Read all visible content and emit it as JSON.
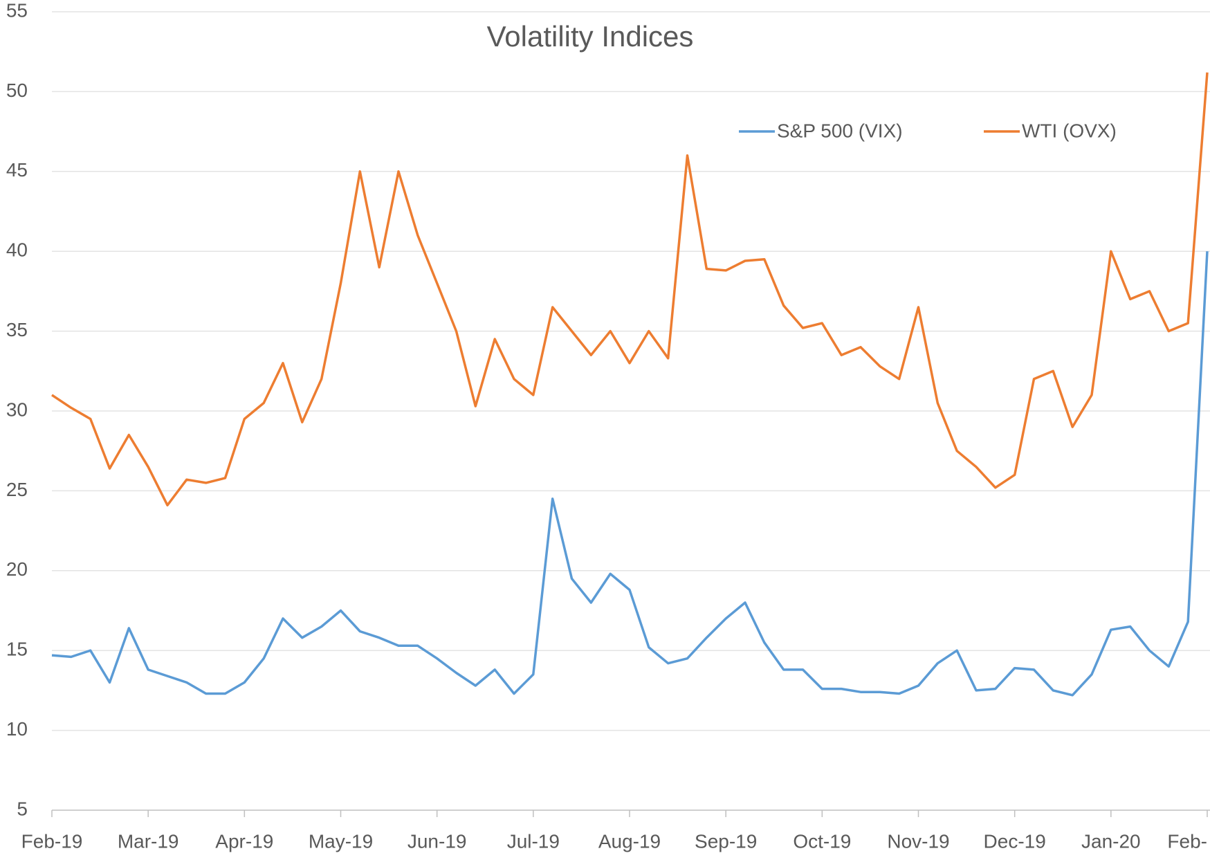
{
  "chart_data": {
    "type": "line",
    "title": "Volatility Indices",
    "categories": [
      "Feb-19",
      null,
      null,
      null,
      null,
      "Mar-19",
      null,
      null,
      null,
      null,
      "Apr-19",
      null,
      null,
      null,
      null,
      "May-19",
      null,
      null,
      null,
      null,
      "Jun-19",
      null,
      null,
      null,
      null,
      "Jul-19",
      null,
      null,
      null,
      null,
      "Aug-19",
      null,
      null,
      null,
      null,
      "Sep-19",
      null,
      null,
      null,
      null,
      "Oct-19",
      null,
      null,
      null,
      null,
      "Nov-19",
      null,
      null,
      null,
      null,
      "Dec-19",
      null,
      null,
      null,
      null,
      "Jan-20",
      null,
      null,
      null,
      null,
      "Feb-"
    ],
    "series": [
      {
        "name": "S&P 500 (VIX)",
        "color": "#5b9bd5",
        "values": [
          14.7,
          14.6,
          15,
          13,
          16.4,
          13.8,
          13.4,
          13,
          12.3,
          12.3,
          13,
          14.5,
          17,
          15.8,
          16.5,
          17.5,
          16.2,
          15.8,
          15.3,
          15.3,
          14.5,
          13.6,
          12.8,
          13.8,
          12.3,
          13.5,
          24.5,
          19.5,
          18,
          19.8,
          18.8,
          15.2,
          14.2,
          14.5,
          15.8,
          17,
          18,
          15.5,
          13.8,
          13.8,
          12.6,
          12.6,
          12.4,
          12.4,
          12.3,
          12.8,
          14.2,
          15,
          12.5,
          12.6,
          13.9,
          13.8,
          12.5,
          12.2,
          13.5,
          16.3,
          16.5,
          15,
          14,
          16.8,
          40
        ]
      },
      {
        "name": "WTI (OVX)",
        "color": "#ed7d31",
        "values": [
          31,
          30.2,
          29.5,
          26.4,
          28.5,
          26.5,
          24.1,
          25.7,
          25.5,
          25.8,
          29.5,
          30.5,
          33,
          29.3,
          32,
          38,
          45,
          39,
          45,
          41,
          38,
          35,
          30.3,
          34.5,
          32,
          31,
          36.5,
          35,
          33.5,
          35,
          33,
          35,
          33.3,
          46,
          38.9,
          38.8,
          39.4,
          39.5,
          36.6,
          35.2,
          35.5,
          33.5,
          34,
          32.8,
          32,
          36.5,
          30.5,
          27.5,
          26.5,
          25.2,
          26,
          32,
          32.5,
          29,
          31,
          40,
          37,
          37.5,
          35,
          35.5,
          51.2
        ]
      }
    ],
    "ylim": [
      5,
      55
    ],
    "yticks": [
      5,
      10,
      15,
      20,
      25,
      30,
      35,
      40,
      45,
      50,
      55
    ],
    "grid": true
  }
}
